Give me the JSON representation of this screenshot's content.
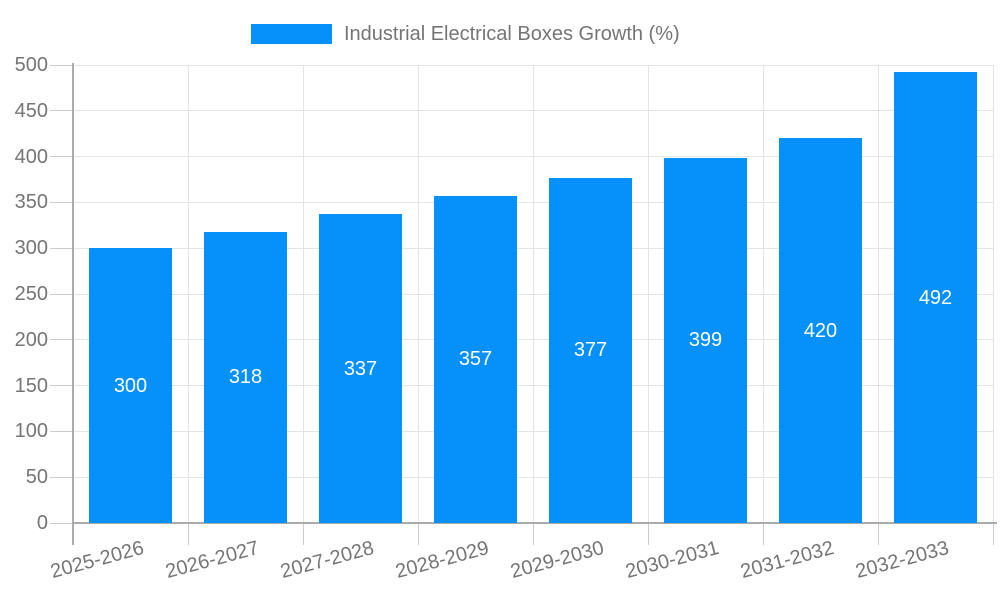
{
  "legend": {
    "label": "Industrial Electrical Boxes Growth (%)"
  },
  "chart_data": {
    "type": "bar",
    "title": "Industrial Electrical Boxes Growth (%)",
    "categories": [
      "2025-2026",
      "2026-2027",
      "2027-2028",
      "2028-2029",
      "2029-2030",
      "2030-2031",
      "2031-2032",
      "2032-2033"
    ],
    "values": [
      300,
      318,
      337,
      357,
      377,
      399,
      420,
      492
    ],
    "series": [
      {
        "name": "Industrial Electrical Boxes Growth (%)",
        "values": [
          300,
          318,
          337,
          357,
          377,
          399,
          420,
          492
        ]
      }
    ],
    "xlabel": "",
    "ylabel": "",
    "ylim": [
      0,
      500
    ],
    "ytick_step": 50,
    "ytick_labels": [
      "0",
      "50",
      "100",
      "150",
      "200",
      "250",
      "300",
      "350",
      "400",
      "450",
      "500"
    ],
    "grid": true,
    "legend_position": "top",
    "colors": {
      "bar": "#0590fa",
      "value_label": "#ffffff",
      "grid_line": "#e4e4e4",
      "axis_line": "#ababab",
      "tick_mark": "#cccccc",
      "axis_text": "#757575",
      "background": "#ffffff"
    }
  }
}
